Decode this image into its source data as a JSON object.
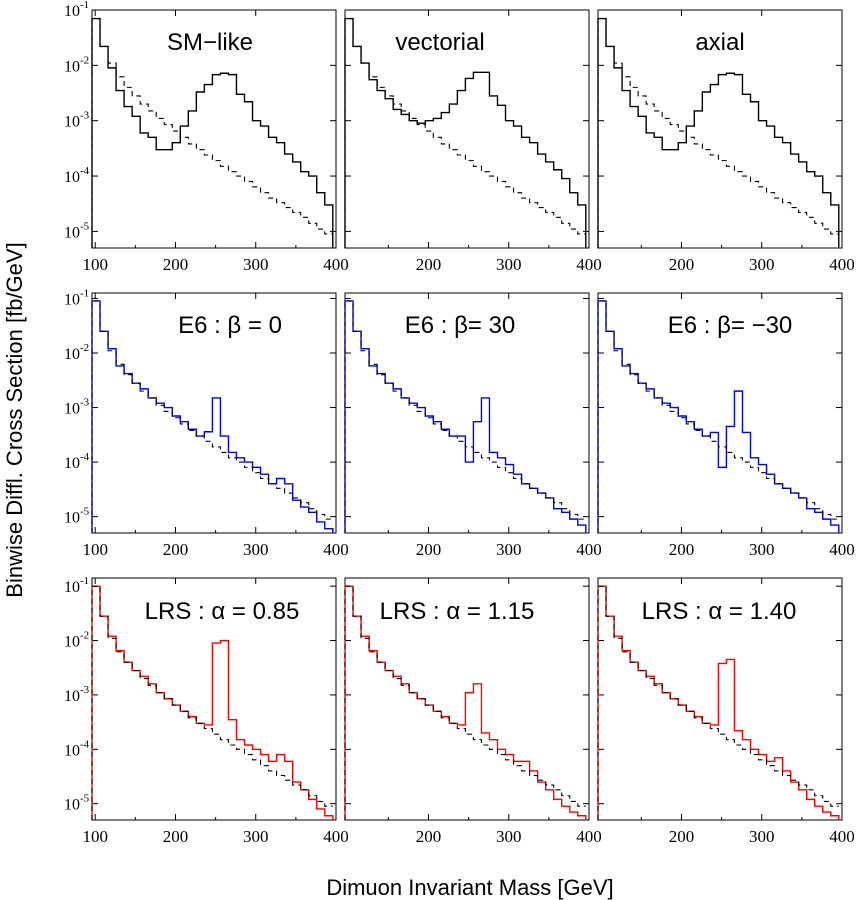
{
  "figure": {
    "xlabel": "Dimuon Invariant Mass [GeV]",
    "ylabel": "Binwise Diffl. Cross Section [fb/GeV]"
  },
  "chart_data": [
    {
      "type": "line",
      "title": "SM−like",
      "color": "#000000",
      "xlim": [
        96,
        400
      ],
      "ylim_log10": [
        -5.3,
        -1.0
      ],
      "y_scale": "log",
      "xticks": [
        100,
        200,
        300,
        400
      ],
      "yticks_exp": [
        -1,
        -2,
        -3,
        -4,
        -5
      ],
      "bin_edges": [
        96,
        106,
        116,
        126,
        136,
        146,
        156,
        166,
        176,
        186,
        196,
        206,
        216,
        226,
        236,
        246,
        256,
        266,
        276,
        286,
        296,
        306,
        316,
        326,
        336,
        346,
        356,
        366,
        376,
        386,
        396
      ],
      "series": [
        {
          "style": "solid",
          "values": [
            0.07,
            0.022,
            0.009,
            0.0035,
            0.0018,
            0.0012,
            0.0006,
            0.0005,
            0.0003,
            0.0003,
            0.0004,
            0.0008,
            0.0015,
            0.0033,
            0.0045,
            0.0068,
            0.0072,
            0.0068,
            0.003,
            0.0022,
            0.001,
            0.0008,
            0.0005,
            0.0004,
            0.00025,
            0.00018,
            0.00012,
            0.0001,
            5e-05,
            3e-05
          ]
        },
        {
          "style": "dashed",
          "values": [
            0.07,
            0.022,
            0.011,
            0.0062,
            0.004,
            0.0028,
            0.002,
            0.0015,
            0.0011,
            0.00085,
            0.00065,
            0.0005,
            0.00038,
            0.0003,
            0.00024,
            0.00019,
            0.00015,
            0.00012,
            0.0001,
            8e-05,
            6.4e-05,
            5e-05,
            4e-05,
            3.3e-05,
            2.7e-05,
            2.2e-05,
            1.8e-05,
            1.4e-05,
            1.1e-05,
            9e-06
          ]
        }
      ]
    },
    {
      "type": "line",
      "title": "vectorial",
      "color": "#000000",
      "xlim": [
        96,
        400
      ],
      "ylim_log10": [
        -5.3,
        -1.0
      ],
      "y_scale": "log",
      "xticks": [
        200,
        300,
        400
      ],
      "yticks_exp": [],
      "bin_edges": [
        96,
        106,
        116,
        126,
        136,
        146,
        156,
        166,
        176,
        186,
        196,
        206,
        216,
        226,
        236,
        246,
        256,
        266,
        276,
        286,
        296,
        306,
        316,
        326,
        336,
        346,
        356,
        366,
        376,
        386,
        396
      ],
      "series": [
        {
          "style": "solid",
          "values": [
            0.07,
            0.022,
            0.011,
            0.0055,
            0.0035,
            0.0025,
            0.0016,
            0.0013,
            0.001,
            0.0009,
            0.001,
            0.0011,
            0.0014,
            0.002,
            0.0035,
            0.0058,
            0.0075,
            0.0075,
            0.0028,
            0.0019,
            0.001,
            0.0008,
            0.0005,
            0.0004,
            0.00025,
            0.00018,
            0.00013,
            9e-05,
            5e-05,
            3e-05
          ]
        },
        {
          "style": "dashed",
          "values": [
            0.07,
            0.022,
            0.011,
            0.0062,
            0.004,
            0.0028,
            0.002,
            0.0015,
            0.0011,
            0.00085,
            0.00065,
            0.0005,
            0.00038,
            0.0003,
            0.00024,
            0.00019,
            0.00015,
            0.00012,
            0.0001,
            8e-05,
            6.4e-05,
            5e-05,
            4e-05,
            3.3e-05,
            2.7e-05,
            2.2e-05,
            1.8e-05,
            1.4e-05,
            1.1e-05,
            9e-06
          ]
        }
      ]
    },
    {
      "type": "line",
      "title": "axial",
      "color": "#000000",
      "xlim": [
        96,
        400
      ],
      "ylim_log10": [
        -5.3,
        -1.0
      ],
      "y_scale": "log",
      "xticks": [
        200,
        300,
        400
      ],
      "yticks_exp": [],
      "bin_edges": [
        96,
        106,
        116,
        126,
        136,
        146,
        156,
        166,
        176,
        186,
        196,
        206,
        216,
        226,
        236,
        246,
        256,
        266,
        276,
        286,
        296,
        306,
        316,
        326,
        336,
        346,
        356,
        366,
        376,
        386,
        396
      ],
      "series": [
        {
          "style": "solid",
          "values": [
            0.07,
            0.022,
            0.009,
            0.0035,
            0.0018,
            0.0012,
            0.0006,
            0.0005,
            0.0003,
            0.0003,
            0.0004,
            0.0008,
            0.0015,
            0.0033,
            0.0045,
            0.0068,
            0.0072,
            0.0068,
            0.003,
            0.0022,
            0.001,
            0.0008,
            0.0005,
            0.0004,
            0.00025,
            0.00018,
            0.00012,
            0.0001,
            5e-05,
            3e-05
          ]
        },
        {
          "style": "dashed",
          "values": [
            0.07,
            0.022,
            0.011,
            0.0062,
            0.004,
            0.0028,
            0.002,
            0.0015,
            0.0011,
            0.00085,
            0.00065,
            0.0005,
            0.00038,
            0.0003,
            0.00024,
            0.00019,
            0.00015,
            0.00012,
            0.0001,
            8e-05,
            6.4e-05,
            5e-05,
            4e-05,
            3.3e-05,
            2.7e-05,
            2.2e-05,
            1.8e-05,
            1.4e-05,
            1.1e-05,
            9e-06
          ]
        }
      ]
    },
    {
      "type": "line",
      "title": "E6 : β = 0",
      "color": "#0000ff",
      "xlim": [
        96,
        400
      ],
      "ylim_log10": [
        -5.3,
        -0.9
      ],
      "y_scale": "log",
      "xticks": [
        100,
        200,
        300,
        400
      ],
      "yticks_exp": [
        -1,
        -2,
        -3,
        -4,
        -5
      ],
      "bin_edges": [
        96,
        106,
        116,
        126,
        136,
        146,
        156,
        166,
        176,
        186,
        196,
        206,
        216,
        226,
        236,
        246,
        256,
        266,
        276,
        286,
        296,
        306,
        316,
        326,
        336,
        346,
        356,
        366,
        376,
        386,
        396
      ],
      "series": [
        {
          "style": "solid",
          "values": [
            0.09,
            0.025,
            0.012,
            0.0058,
            0.0042,
            0.0028,
            0.0022,
            0.0015,
            0.0012,
            0.001,
            0.0007,
            0.00055,
            0.0004,
            0.0003,
            0.00036,
            0.0015,
            0.0003,
            0.00015,
            0.00012,
            0.0001,
            8e-05,
            6e-05,
            4e-05,
            5e-05,
            4e-05,
            2e-05,
            1.5e-05,
            1.2e-05,
            8e-06,
            6e-06
          ]
        },
        {
          "style": "dashed",
          "values": [
            0.09,
            0.025,
            0.011,
            0.0062,
            0.004,
            0.0028,
            0.002,
            0.0015,
            0.0011,
            0.00085,
            0.00065,
            0.0005,
            0.00038,
            0.0003,
            0.00024,
            0.00019,
            0.00015,
            0.00012,
            0.0001,
            8e-05,
            6.4e-05,
            5e-05,
            4e-05,
            3.3e-05,
            2.7e-05,
            2.2e-05,
            1.8e-05,
            1.4e-05,
            1.1e-05,
            9e-06
          ]
        }
      ]
    },
    {
      "type": "line",
      "title": "E6 : β= 30",
      "color": "#0000ff",
      "xlim": [
        96,
        400
      ],
      "ylim_log10": [
        -5.3,
        -0.9
      ],
      "y_scale": "log",
      "xticks": [
        200,
        300,
        400
      ],
      "yticks_exp": [],
      "bin_edges": [
        96,
        106,
        116,
        126,
        136,
        146,
        156,
        166,
        176,
        186,
        196,
        206,
        216,
        226,
        236,
        246,
        256,
        266,
        276,
        286,
        296,
        306,
        316,
        326,
        336,
        346,
        356,
        366,
        376,
        386,
        396
      ],
      "series": [
        {
          "style": "solid",
          "values": [
            0.09,
            0.025,
            0.012,
            0.0058,
            0.0042,
            0.0028,
            0.0022,
            0.0015,
            0.0012,
            0.001,
            0.0007,
            0.00055,
            0.0004,
            0.0003,
            0.0003,
            0.0001,
            0.00055,
            0.0015,
            0.00015,
            0.00012,
            9e-05,
            6e-05,
            4e-05,
            3.3e-05,
            2.7e-05,
            2.2e-05,
            1.4e-05,
            1.2e-05,
            9e-06,
            7e-06
          ]
        },
        {
          "style": "dashed",
          "values": [
            0.09,
            0.025,
            0.011,
            0.0062,
            0.004,
            0.0028,
            0.002,
            0.0015,
            0.0011,
            0.00085,
            0.00065,
            0.0005,
            0.00038,
            0.0003,
            0.00024,
            0.00019,
            0.00015,
            0.00012,
            0.0001,
            8e-05,
            6.4e-05,
            5e-05,
            4e-05,
            3.3e-05,
            2.7e-05,
            2.2e-05,
            1.8e-05,
            1.4e-05,
            1.1e-05,
            9e-06
          ]
        }
      ]
    },
    {
      "type": "line",
      "title": "E6 : β= −30",
      "color": "#0000ff",
      "xlim": [
        96,
        400
      ],
      "ylim_log10": [
        -5.3,
        -0.9
      ],
      "y_scale": "log",
      "xticks": [
        200,
        300,
        400
      ],
      "yticks_exp": [],
      "bin_edges": [
        96,
        106,
        116,
        126,
        136,
        146,
        156,
        166,
        176,
        186,
        196,
        206,
        216,
        226,
        236,
        246,
        256,
        266,
        276,
        286,
        296,
        306,
        316,
        326,
        336,
        346,
        356,
        366,
        376,
        386,
        396
      ],
      "series": [
        {
          "style": "solid",
          "values": [
            0.09,
            0.025,
            0.012,
            0.0058,
            0.0042,
            0.0028,
            0.0022,
            0.0015,
            0.0012,
            0.001,
            0.0007,
            0.00055,
            0.0004,
            0.0003,
            0.00035,
            8e-05,
            0.00045,
            0.002,
            0.00035,
            0.00012,
            9e-05,
            6e-05,
            4e-05,
            3.3e-05,
            2.7e-05,
            2.2e-05,
            1.4e-05,
            1.2e-05,
            9e-06,
            7e-06
          ]
        },
        {
          "style": "dashed",
          "values": [
            0.09,
            0.025,
            0.011,
            0.0062,
            0.004,
            0.0028,
            0.002,
            0.0015,
            0.0011,
            0.00085,
            0.00065,
            0.0005,
            0.00038,
            0.0003,
            0.00024,
            0.00019,
            0.00015,
            0.00012,
            0.0001,
            8e-05,
            6.4e-05,
            5e-05,
            4e-05,
            3.3e-05,
            2.7e-05,
            2.2e-05,
            1.8e-05,
            1.4e-05,
            1.1e-05,
            9e-06
          ]
        }
      ]
    },
    {
      "type": "line",
      "title": "LRS : α = 0.85",
      "color": "#ff0000",
      "xlim": [
        96,
        400
      ],
      "ylim_log10": [
        -5.3,
        -0.85
      ],
      "y_scale": "log",
      "xticks": [
        100,
        200,
        300,
        400
      ],
      "yticks_exp": [
        -1,
        -2,
        -3,
        -4,
        -5
      ],
      "bin_edges": [
        96,
        106,
        116,
        126,
        136,
        146,
        156,
        166,
        176,
        186,
        196,
        206,
        216,
        226,
        236,
        246,
        256,
        266,
        276,
        286,
        296,
        306,
        316,
        326,
        336,
        346,
        356,
        366,
        376,
        386,
        396
      ],
      "series": [
        {
          "style": "solid",
          "values": [
            0.1,
            0.028,
            0.012,
            0.0065,
            0.004,
            0.0028,
            0.0022,
            0.0016,
            0.0011,
            0.00085,
            0.00065,
            0.0005,
            0.0004,
            0.0003,
            0.00028,
            0.009,
            0.01,
            0.00035,
            0.00015,
            0.00012,
            0.0001,
            8e-05,
            6e-05,
            8e-05,
            6e-05,
            2.5e-05,
            1.8e-05,
            1.2e-05,
            8e-06,
            6e-06
          ]
        },
        {
          "style": "dashed",
          "values": [
            0.1,
            0.028,
            0.011,
            0.0062,
            0.004,
            0.0028,
            0.002,
            0.0015,
            0.0011,
            0.00085,
            0.00065,
            0.0005,
            0.00038,
            0.0003,
            0.00024,
            0.00019,
            0.00015,
            0.00012,
            0.0001,
            8e-05,
            6.4e-05,
            5e-05,
            4e-05,
            3.3e-05,
            2.7e-05,
            2.2e-05,
            1.8e-05,
            1.4e-05,
            1.1e-05,
            9e-06
          ]
        }
      ]
    },
    {
      "type": "line",
      "title": "LRS : α = 1.15",
      "color": "#ff0000",
      "xlim": [
        96,
        400
      ],
      "ylim_log10": [
        -5.3,
        -0.85
      ],
      "y_scale": "log",
      "xticks": [
        200,
        300,
        400
      ],
      "yticks_exp": [],
      "bin_edges": [
        96,
        106,
        116,
        126,
        136,
        146,
        156,
        166,
        176,
        186,
        196,
        206,
        216,
        226,
        236,
        246,
        256,
        266,
        276,
        286,
        296,
        306,
        316,
        326,
        336,
        346,
        356,
        366,
        376,
        386,
        396
      ],
      "series": [
        {
          "style": "solid",
          "values": [
            0.1,
            0.028,
            0.012,
            0.0065,
            0.004,
            0.0028,
            0.0022,
            0.0016,
            0.0011,
            0.00085,
            0.00065,
            0.0005,
            0.0004,
            0.0003,
            0.00028,
            0.0011,
            0.0016,
            0.0002,
            0.00015,
            0.0001,
            8e-05,
            6e-05,
            6e-05,
            4e-05,
            2.5e-05,
            1.8e-05,
            1.2e-05,
            9e-06,
            7e-06,
            6e-06
          ]
        },
        {
          "style": "dashed",
          "values": [
            0.1,
            0.028,
            0.011,
            0.0062,
            0.004,
            0.0028,
            0.002,
            0.0015,
            0.0011,
            0.00085,
            0.00065,
            0.0005,
            0.00038,
            0.0003,
            0.00024,
            0.00019,
            0.00015,
            0.00012,
            0.0001,
            8e-05,
            6.4e-05,
            5e-05,
            4e-05,
            3.3e-05,
            2.7e-05,
            2.2e-05,
            1.8e-05,
            1.4e-05,
            1.1e-05,
            9e-06
          ]
        }
      ]
    },
    {
      "type": "line",
      "title": "LRS : α = 1.40",
      "color": "#ff0000",
      "xlim": [
        96,
        400
      ],
      "ylim_log10": [
        -5.3,
        -0.85
      ],
      "y_scale": "log",
      "xticks": [
        200,
        300,
        400
      ],
      "yticks_exp": [],
      "bin_edges": [
        96,
        106,
        116,
        126,
        136,
        146,
        156,
        166,
        176,
        186,
        196,
        206,
        216,
        226,
        236,
        246,
        256,
        266,
        276,
        286,
        296,
        306,
        316,
        326,
        336,
        346,
        356,
        366,
        376,
        386,
        396
      ],
      "series": [
        {
          "style": "solid",
          "values": [
            0.1,
            0.028,
            0.012,
            0.0065,
            0.004,
            0.0028,
            0.0022,
            0.0016,
            0.0011,
            0.00085,
            0.00065,
            0.0005,
            0.0004,
            0.0003,
            0.00028,
            0.0038,
            0.0045,
            0.00022,
            0.00015,
            0.0001,
            8e-05,
            6e-05,
            7e-05,
            4e-05,
            2.5e-05,
            1.8e-05,
            1.2e-05,
            9e-06,
            7e-06,
            6e-06
          ]
        },
        {
          "style": "dashed",
          "values": [
            0.1,
            0.028,
            0.011,
            0.0062,
            0.004,
            0.0028,
            0.002,
            0.0015,
            0.0011,
            0.00085,
            0.00065,
            0.0005,
            0.00038,
            0.0003,
            0.00024,
            0.00019,
            0.00015,
            0.00012,
            0.0001,
            8e-05,
            6.4e-05,
            5e-05,
            4e-05,
            3.3e-05,
            2.7e-05,
            2.2e-05,
            1.8e-05,
            1.4e-05,
            1.1e-05,
            9e-06
          ]
        }
      ]
    }
  ]
}
